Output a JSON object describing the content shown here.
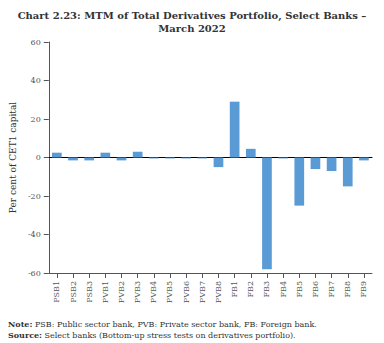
{
  "chart_data": {
    "type": "bar",
    "title": "Chart 2.23: MTM of Total Derivatives Portfolio, Select Banks –\nMarch 2022",
    "ylabel": "Per cent of CET1 capital",
    "categories": [
      "PSB1",
      "PSB2",
      "PSB3",
      "PVB1",
      "PVB2",
      "PVB3",
      "PVB4",
      "PVB5",
      "PVB6",
      "PVB7",
      "PVB8",
      "FB1",
      "FB2",
      "FB3",
      "FB4",
      "FB5",
      "FB6",
      "FB7",
      "FB8",
      "FB9"
    ],
    "values": [
      2.5,
      -1.5,
      -1.5,
      2.5,
      -1.5,
      3.0,
      -0.5,
      -0.5,
      -0.5,
      -0.5,
      -5.0,
      29.0,
      4.5,
      -58.0,
      -0.5,
      -25.0,
      -6.0,
      -7.0,
      -15.0,
      -1.5
    ],
    "color": "#5b9bd5",
    "ylim": [
      -60,
      60
    ],
    "yticks": [
      -60,
      -40,
      -20,
      0,
      20,
      40,
      60
    ],
    "grid": false,
    "annotations": [
      {
        "label": "Note:",
        "text": "PSB: Public sector bank, PVB: Private sector bank, FB: Foreign bank."
      },
      {
        "label": "Source:",
        "text": "Select banks (Bottom-up stress tests on derivatives portfolio)."
      }
    ]
  }
}
